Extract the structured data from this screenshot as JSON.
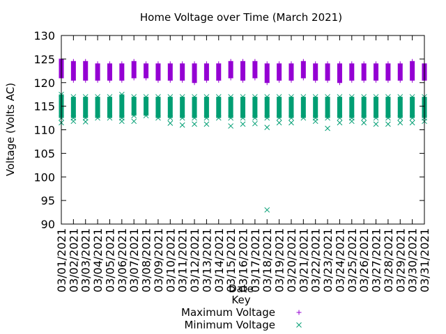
{
  "chart_data": {
    "type": "scatter",
    "title": "Home Voltage over Time (March 2021)",
    "xlabel": "Date",
    "ylabel": "Voltage (Volts AC)",
    "ylim": [
      90,
      130
    ],
    "yticks": [
      "90",
      "95",
      "100",
      "105",
      "110",
      "115",
      "120",
      "125",
      "130"
    ],
    "categories": [
      "03/01/2021",
      "03/02/2021",
      "03/03/2021",
      "03/04/2021",
      "03/05/2021",
      "03/06/2021",
      "03/07/2021",
      "03/08/2021",
      "03/09/2021",
      "03/10/2021",
      "03/11/2021",
      "03/12/2021",
      "03/13/2021",
      "03/14/2021",
      "03/15/2021",
      "03/16/2021",
      "03/17/2021",
      "03/18/2021",
      "03/19/2021",
      "03/20/2021",
      "03/21/2021",
      "03/22/2021",
      "03/23/2021",
      "03/24/2021",
      "03/25/2021",
      "03/26/2021",
      "03/27/2021",
      "03/28/2021",
      "03/29/2021",
      "03/30/2021",
      "03/31/2021"
    ],
    "legend": {
      "title": "Key",
      "placement": "bottom-center"
    },
    "series": [
      {
        "name": "Maximum Voltage",
        "marker": "plus",
        "color": "#9400d3",
        "band_low": [
          121.0,
          120.5,
          120.5,
          120.5,
          120.5,
          120.5,
          121.0,
          121.0,
          120.5,
          120.5,
          120.5,
          120.0,
          120.5,
          120.5,
          121.0,
          120.5,
          121.0,
          120.0,
          120.5,
          120.5,
          121.0,
          120.5,
          120.5,
          120.0,
          120.5,
          120.5,
          120.5,
          120.5,
          120.5,
          120.5,
          120.5
        ],
        "band_high": [
          125.0,
          124.5,
          124.5,
          124.0,
          124.0,
          124.0,
          124.5,
          124.0,
          124.0,
          124.0,
          124.0,
          124.0,
          124.0,
          124.0,
          124.5,
          124.5,
          124.5,
          124.0,
          124.0,
          124.0,
          124.5,
          124.0,
          124.0,
          124.0,
          124.0,
          124.0,
          124.0,
          124.0,
          124.0,
          124.5,
          124.0
        ],
        "outliers": []
      },
      {
        "name": "Minimum Voltage",
        "marker": "cross",
        "color": "#009e73",
        "band_low": [
          112.5,
          112.5,
          112.5,
          112.5,
          112.5,
          112.5,
          113.0,
          113.0,
          112.5,
          112.5,
          112.5,
          112.5,
          112.5,
          112.5,
          112.5,
          112.5,
          112.5,
          112.5,
          112.5,
          112.5,
          112.5,
          112.5,
          112.5,
          112.5,
          112.5,
          112.5,
          112.5,
          112.5,
          112.5,
          112.5,
          112.5
        ],
        "band_high": [
          117.5,
          117.0,
          117.0,
          117.0,
          117.0,
          117.5,
          117.0,
          117.0,
          117.0,
          117.0,
          117.0,
          117.0,
          117.0,
          117.0,
          117.0,
          117.0,
          117.0,
          117.0,
          117.0,
          117.0,
          117.0,
          117.0,
          117.0,
          117.0,
          117.0,
          117.0,
          117.0,
          117.0,
          117.0,
          117.0,
          117.0
        ],
        "outliers": [
          {
            "x": "03/01/2021",
            "y": 111.5
          },
          {
            "x": "03/02/2021",
            "y": 111.8
          },
          {
            "x": "03/03/2021",
            "y": 111.7
          },
          {
            "x": "03/06/2021",
            "y": 111.8
          },
          {
            "x": "03/07/2021",
            "y": 111.8
          },
          {
            "x": "03/10/2021",
            "y": 111.4
          },
          {
            "x": "03/11/2021",
            "y": 111.0
          },
          {
            "x": "03/12/2021",
            "y": 111.2
          },
          {
            "x": "03/13/2021",
            "y": 111.2
          },
          {
            "x": "03/15/2021",
            "y": 110.8
          },
          {
            "x": "03/16/2021",
            "y": 111.2
          },
          {
            "x": "03/17/2021",
            "y": 111.3
          },
          {
            "x": "03/18/2021",
            "y": 110.5
          },
          {
            "x": "03/18/2021",
            "y": 93.0
          },
          {
            "x": "03/19/2021",
            "y": 111.5
          },
          {
            "x": "03/20/2021",
            "y": 111.5
          },
          {
            "x": "03/22/2021",
            "y": 111.8
          },
          {
            "x": "03/23/2021",
            "y": 110.3
          },
          {
            "x": "03/24/2021",
            "y": 111.5
          },
          {
            "x": "03/25/2021",
            "y": 111.8
          },
          {
            "x": "03/26/2021",
            "y": 111.5
          },
          {
            "x": "03/27/2021",
            "y": 111.2
          },
          {
            "x": "03/28/2021",
            "y": 111.2
          },
          {
            "x": "03/29/2021",
            "y": 111.5
          },
          {
            "x": "03/30/2021",
            "y": 111.5
          },
          {
            "x": "03/31/2021",
            "y": 111.8
          }
        ]
      }
    ]
  }
}
